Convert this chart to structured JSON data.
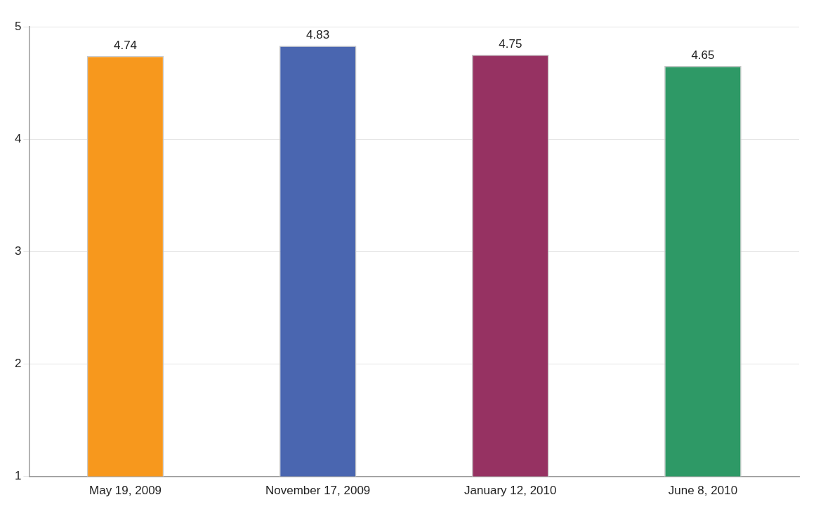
{
  "chart_data": {
    "type": "bar",
    "categories": [
      "May 19, 2009",
      "November 17, 2009",
      "January 12, 2010",
      "June 8, 2010"
    ],
    "values": [
      4.74,
      4.83,
      4.75,
      4.65
    ],
    "colors": [
      "#f7981d",
      "#4a66b0",
      "#963262",
      "#2e9966"
    ],
    "ylim": [
      1,
      5
    ],
    "yticks": [
      1,
      2,
      3,
      4,
      5
    ],
    "grid": "y",
    "data_labels": true,
    "legend": false
  }
}
